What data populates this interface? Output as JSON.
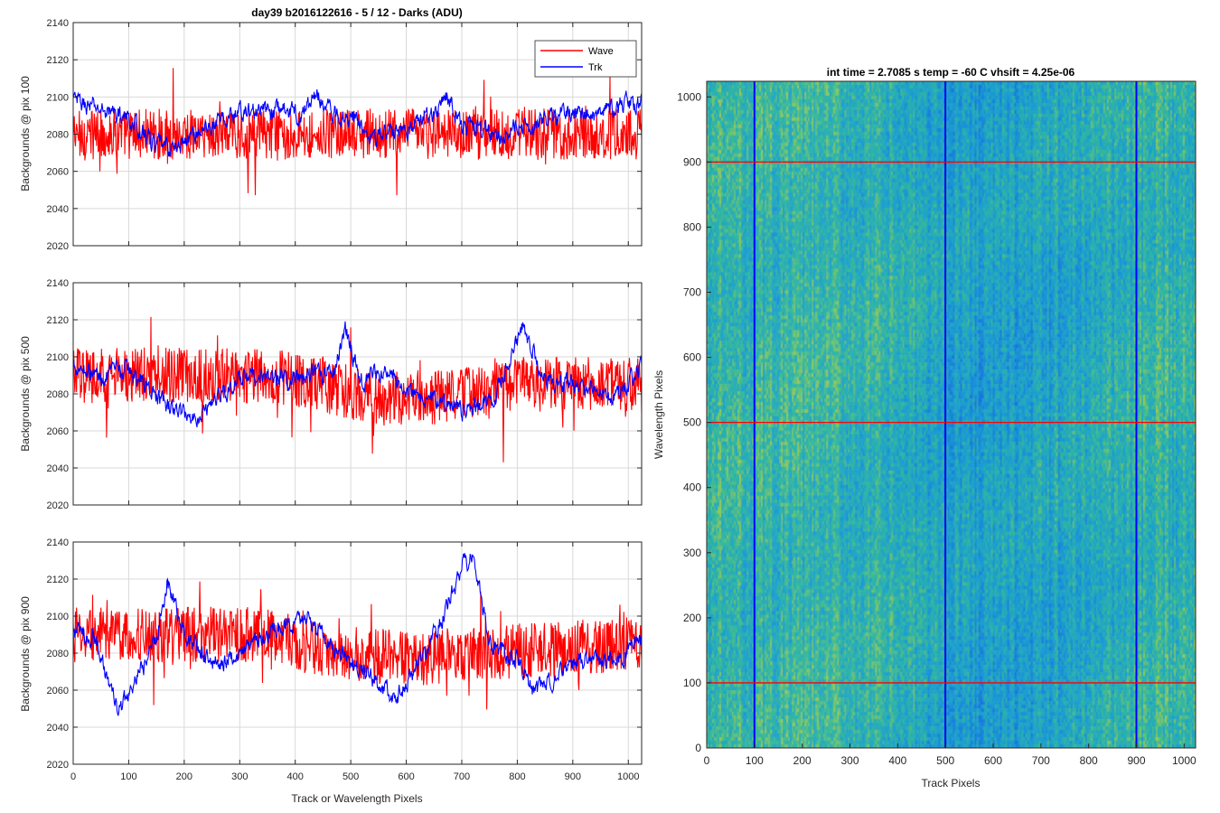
{
  "figure_title": "day39 b2016122616 - 5 / 12 - Darks (ADU)",
  "colors": {
    "wave": "#ff0000",
    "trk": "#0000ff",
    "grid": "#d9d9d9",
    "axis": "#262626"
  },
  "chart_data": [
    {
      "type": "line",
      "title": "day39 b2016122616 - 5 / 12 - Darks (ADU)",
      "ylabel": "Backgrounds @ pix 100",
      "xlabel": "",
      "xlim": [
        0,
        1024
      ],
      "ylim": [
        2020,
        2140
      ],
      "xticks": [
        0,
        100,
        200,
        300,
        400,
        500,
        600,
        700,
        800,
        900,
        1000
      ],
      "yticks": [
        2020,
        2040,
        2060,
        2080,
        2100,
        2120,
        2140
      ],
      "x_tick_labels_shown": false,
      "grid": true,
      "legend": {
        "placement": "top-right",
        "entries": [
          "Wave",
          "Trk"
        ]
      },
      "series": [
        {
          "name": "Wave",
          "color": "#ff0000",
          "mean": 2080,
          "noise": 11,
          "walk": [
            [
              0,
              0
            ]
          ]
        },
        {
          "name": "Trk",
          "color": "#0000ff",
          "mean": 2088,
          "noise": 4,
          "walk": [
            [
              0,
              10
            ],
            [
              40,
              6
            ],
            [
              90,
              2
            ],
            [
              150,
              -14
            ],
            [
              180,
              -16
            ],
            [
              230,
              -6
            ],
            [
              300,
              4
            ],
            [
              340,
              4
            ],
            [
              380,
              6
            ],
            [
              410,
              2
            ],
            [
              440,
              14
            ],
            [
              470,
              2
            ],
            [
              500,
              2
            ],
            [
              550,
              -10
            ],
            [
              600,
              -4
            ],
            [
              650,
              2
            ],
            [
              670,
              14
            ],
            [
              700,
              -2
            ],
            [
              750,
              -8
            ],
            [
              800,
              -6
            ],
            [
              850,
              0
            ],
            [
              900,
              4
            ],
            [
              950,
              2
            ],
            [
              1000,
              10
            ],
            [
              1024,
              8
            ]
          ]
        }
      ]
    },
    {
      "type": "line",
      "title": "",
      "ylabel": "Backgrounds @ pix 500",
      "xlabel": "",
      "xlim": [
        0,
        1024
      ],
      "ylim": [
        2020,
        2140
      ],
      "xticks": [
        0,
        100,
        200,
        300,
        400,
        500,
        600,
        700,
        800,
        900,
        1000
      ],
      "yticks": [
        2020,
        2040,
        2060,
        2080,
        2100,
        2120,
        2140
      ],
      "x_tick_labels_shown": false,
      "grid": true,
      "series": [
        {
          "name": "Wave",
          "color": "#ff0000",
          "mean": 2085,
          "noise": 12,
          "walk": [
            [
              0,
              5
            ],
            [
              350,
              5
            ],
            [
              450,
              0
            ],
            [
              550,
              -8
            ],
            [
              700,
              -6
            ],
            [
              800,
              0
            ],
            [
              1024,
              0
            ]
          ]
        },
        {
          "name": "Trk",
          "color": "#0000ff",
          "mean": 2085,
          "noise": 4,
          "walk": [
            [
              0,
              12
            ],
            [
              50,
              4
            ],
            [
              100,
              8
            ],
            [
              170,
              -12
            ],
            [
              220,
              -18
            ],
            [
              260,
              -6
            ],
            [
              300,
              2
            ],
            [
              350,
              4
            ],
            [
              420,
              4
            ],
            [
              470,
              8
            ],
            [
              490,
              30
            ],
            [
              520,
              2
            ],
            [
              560,
              6
            ],
            [
              600,
              -2
            ],
            [
              650,
              -8
            ],
            [
              700,
              -14
            ],
            [
              760,
              -8
            ],
            [
              790,
              16
            ],
            [
              810,
              32
            ],
            [
              840,
              8
            ],
            [
              870,
              0
            ],
            [
              920,
              0
            ],
            [
              970,
              -6
            ],
            [
              1024,
              8
            ]
          ]
        }
      ]
    },
    {
      "type": "line",
      "title": "",
      "ylabel": "Backgrounds @ pix 900",
      "xlabel": "Track or Wavelength Pixels",
      "xlim": [
        0,
        1024
      ],
      "ylim": [
        2020,
        2140
      ],
      "xticks": [
        0,
        100,
        200,
        300,
        400,
        500,
        600,
        700,
        800,
        900,
        1000
      ],
      "yticks": [
        2020,
        2040,
        2060,
        2080,
        2100,
        2120,
        2140
      ],
      "x_tick_labels_shown": true,
      "grid": true,
      "series": [
        {
          "name": "Wave",
          "color": "#ff0000",
          "mean": 2085,
          "noise": 12,
          "walk": [
            [
              0,
              5
            ],
            [
              350,
              5
            ],
            [
              450,
              -4
            ],
            [
              600,
              -8
            ],
            [
              800,
              -4
            ],
            [
              1024,
              0
            ]
          ]
        },
        {
          "name": "Trk",
          "color": "#0000ff",
          "mean": 2082,
          "noise": 4,
          "walk": [
            [
              0,
              10
            ],
            [
              40,
              6
            ],
            [
              80,
              -34
            ],
            [
              110,
              -20
            ],
            [
              150,
              6
            ],
            [
              170,
              38
            ],
            [
              200,
              8
            ],
            [
              250,
              -8
            ],
            [
              300,
              -2
            ],
            [
              350,
              8
            ],
            [
              420,
              18
            ],
            [
              470,
              2
            ],
            [
              520,
              -10
            ],
            [
              580,
              -26
            ],
            [
              630,
              -6
            ],
            [
              670,
              20
            ],
            [
              700,
              46
            ],
            [
              720,
              50
            ],
            [
              750,
              4
            ],
            [
              800,
              -6
            ],
            [
              830,
              -24
            ],
            [
              870,
              -14
            ],
            [
              920,
              -6
            ],
            [
              970,
              -6
            ],
            [
              1024,
              4
            ]
          ]
        }
      ]
    },
    {
      "type": "heatmap",
      "title": "int time = 2.7085 s    temp = -60 C    vhsift = 4.25e-06",
      "xlabel": "Track Pixels",
      "ylabel": "Wavelength Pixels",
      "xlim": [
        0,
        1024
      ],
      "ylim": [
        0,
        1024
      ],
      "xticks": [
        0,
        100,
        200,
        300,
        400,
        500,
        600,
        700,
        800,
        900,
        1000
      ],
      "yticks": [
        0,
        100,
        200,
        300,
        400,
        500,
        600,
        700,
        800,
        900,
        1000
      ],
      "colormap": "parula",
      "horizontal_markers": {
        "values": [
          100,
          500,
          900
        ],
        "color": "#ff0000"
      },
      "vertical_markers": {
        "values": [
          100,
          500,
          900
        ],
        "color": "#0000ff"
      }
    }
  ]
}
